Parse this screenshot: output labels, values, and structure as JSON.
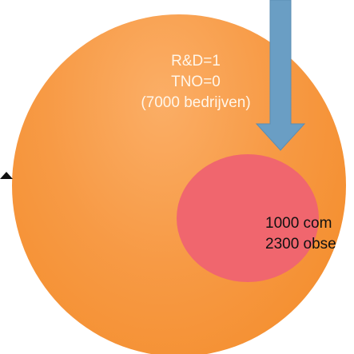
{
  "outer_set": {
    "lines": [
      "R&D=1",
      "TNO=0",
      "(7000 bedrijven)"
    ]
  },
  "inner_set": {
    "lines": [
      "1000 com",
      "2300 obse"
    ]
  },
  "colors": {
    "outer_fill": "#f79a45",
    "inner_fill": "#f0666e",
    "arrow_fill": "#6a9ec4"
  }
}
